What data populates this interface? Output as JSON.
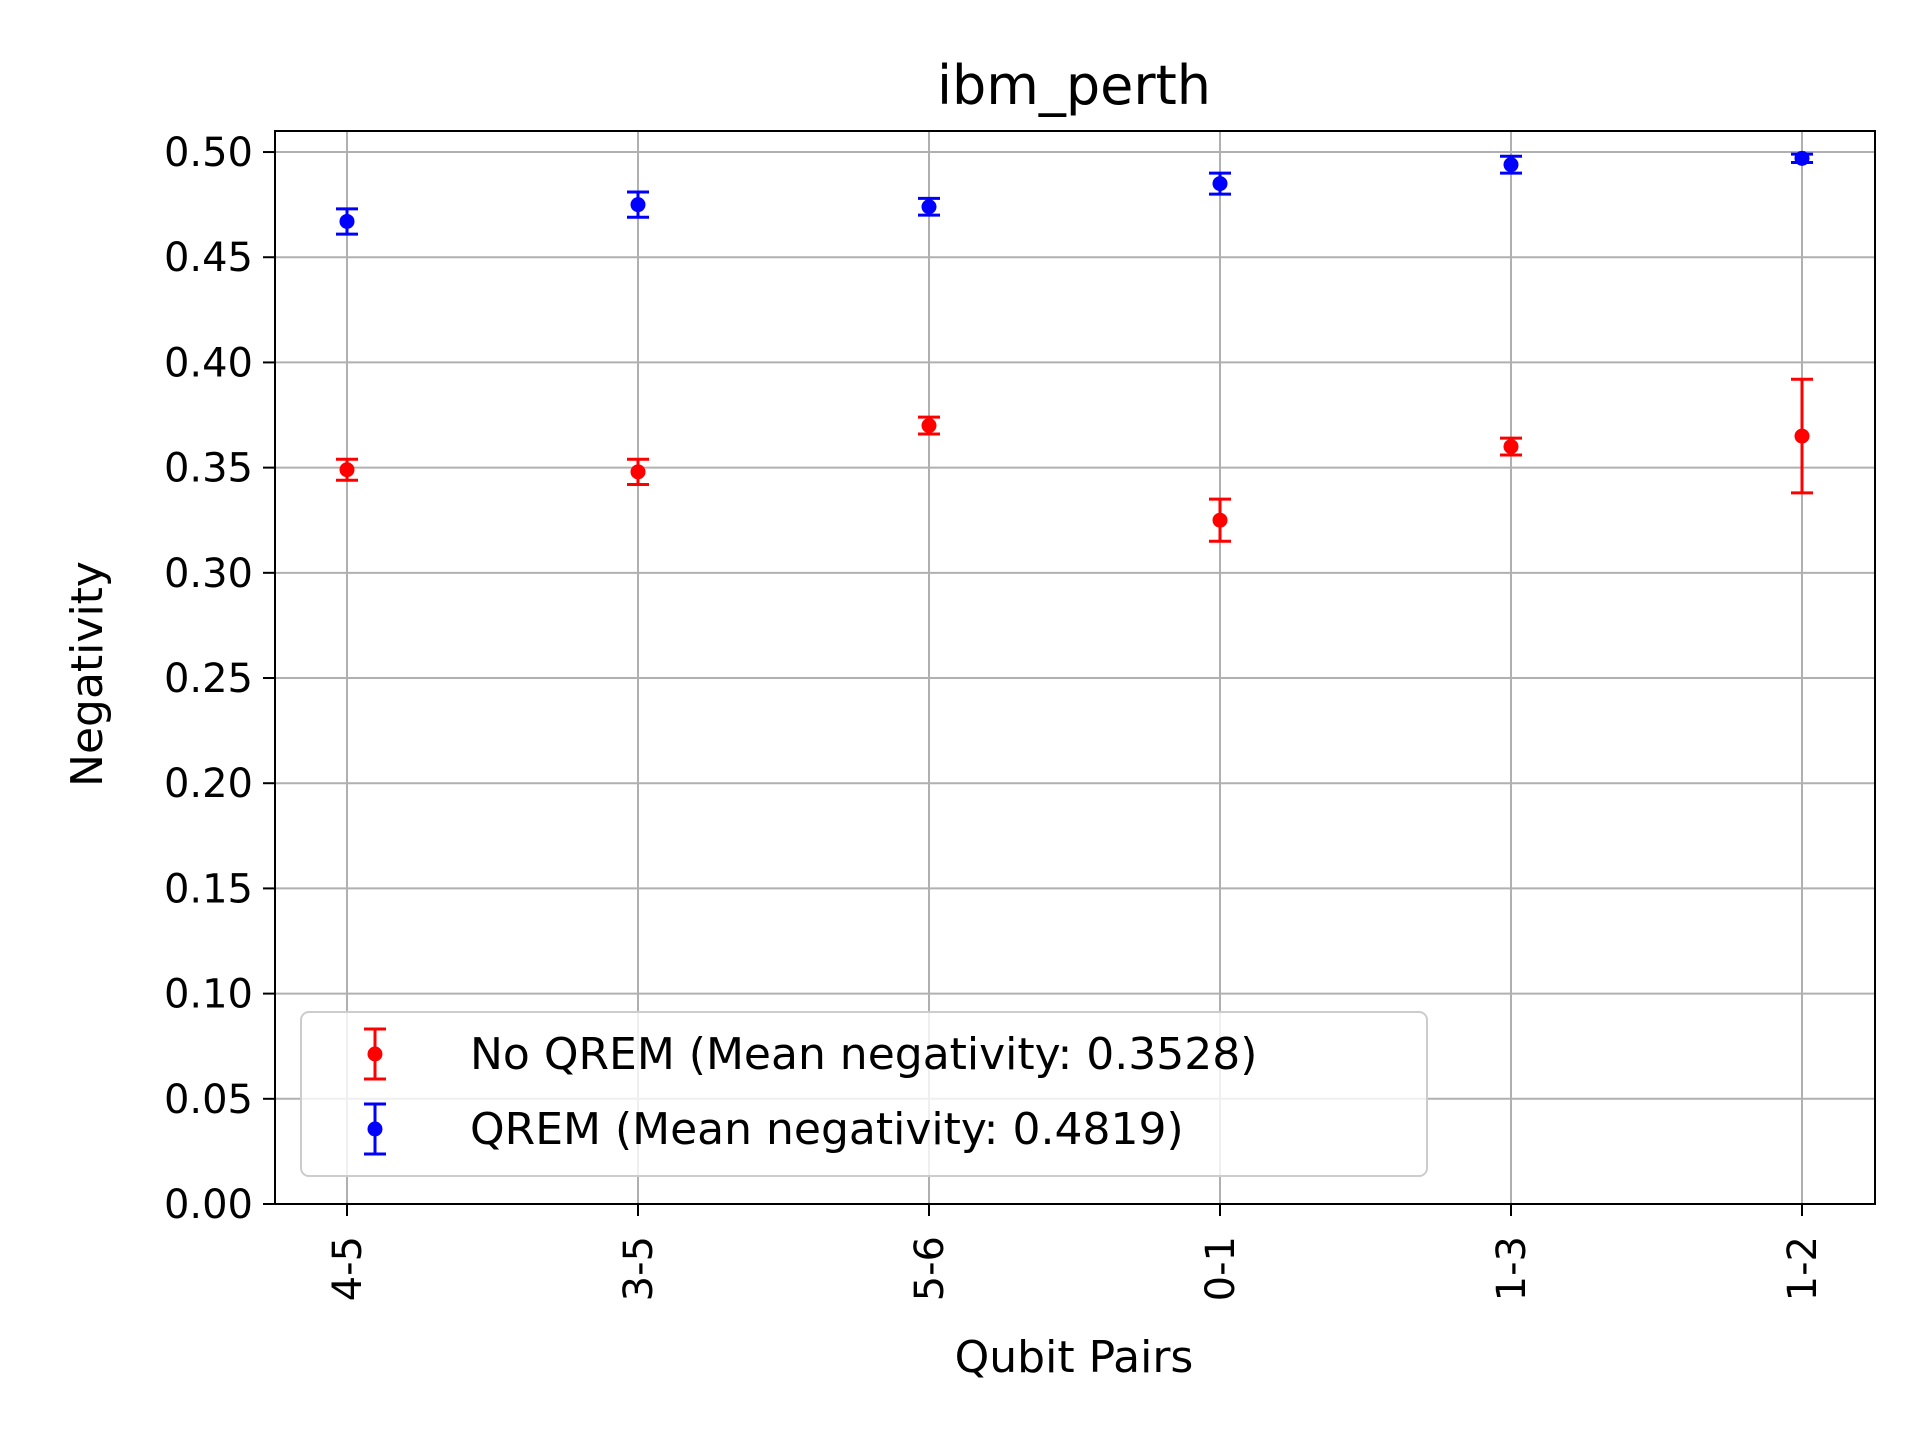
{
  "chart_data": {
    "type": "scatter",
    "title": "ibm_perth",
    "xlabel": "Qubit Pairs",
    "ylabel": "Negativity",
    "categories": [
      "4-5",
      "3-5",
      "5-6",
      "0-1",
      "1-3",
      "1-2"
    ],
    "ylim": [
      0.0,
      0.51
    ],
    "yticks": [
      "0.00",
      "0.05",
      "0.10",
      "0.15",
      "0.20",
      "0.25",
      "0.30",
      "0.35",
      "0.40",
      "0.45",
      "0.50"
    ],
    "grid": true,
    "legend_position": "lower left",
    "series": [
      {
        "name": "No QREM (Mean negativity: 0.3528)",
        "color": "#ff0000",
        "values": [
          0.349,
          0.348,
          0.37,
          0.325,
          0.36,
          0.365
        ],
        "errors": [
          0.005,
          0.006,
          0.004,
          0.01,
          0.004,
          0.027
        ]
      },
      {
        "name": "QREM (Mean negativity: 0.4819)",
        "color": "#0000ff",
        "values": [
          0.467,
          0.475,
          0.474,
          0.485,
          0.494,
          0.497
        ],
        "errors": [
          0.006,
          0.006,
          0.004,
          0.005,
          0.004,
          0.002
        ]
      }
    ]
  }
}
